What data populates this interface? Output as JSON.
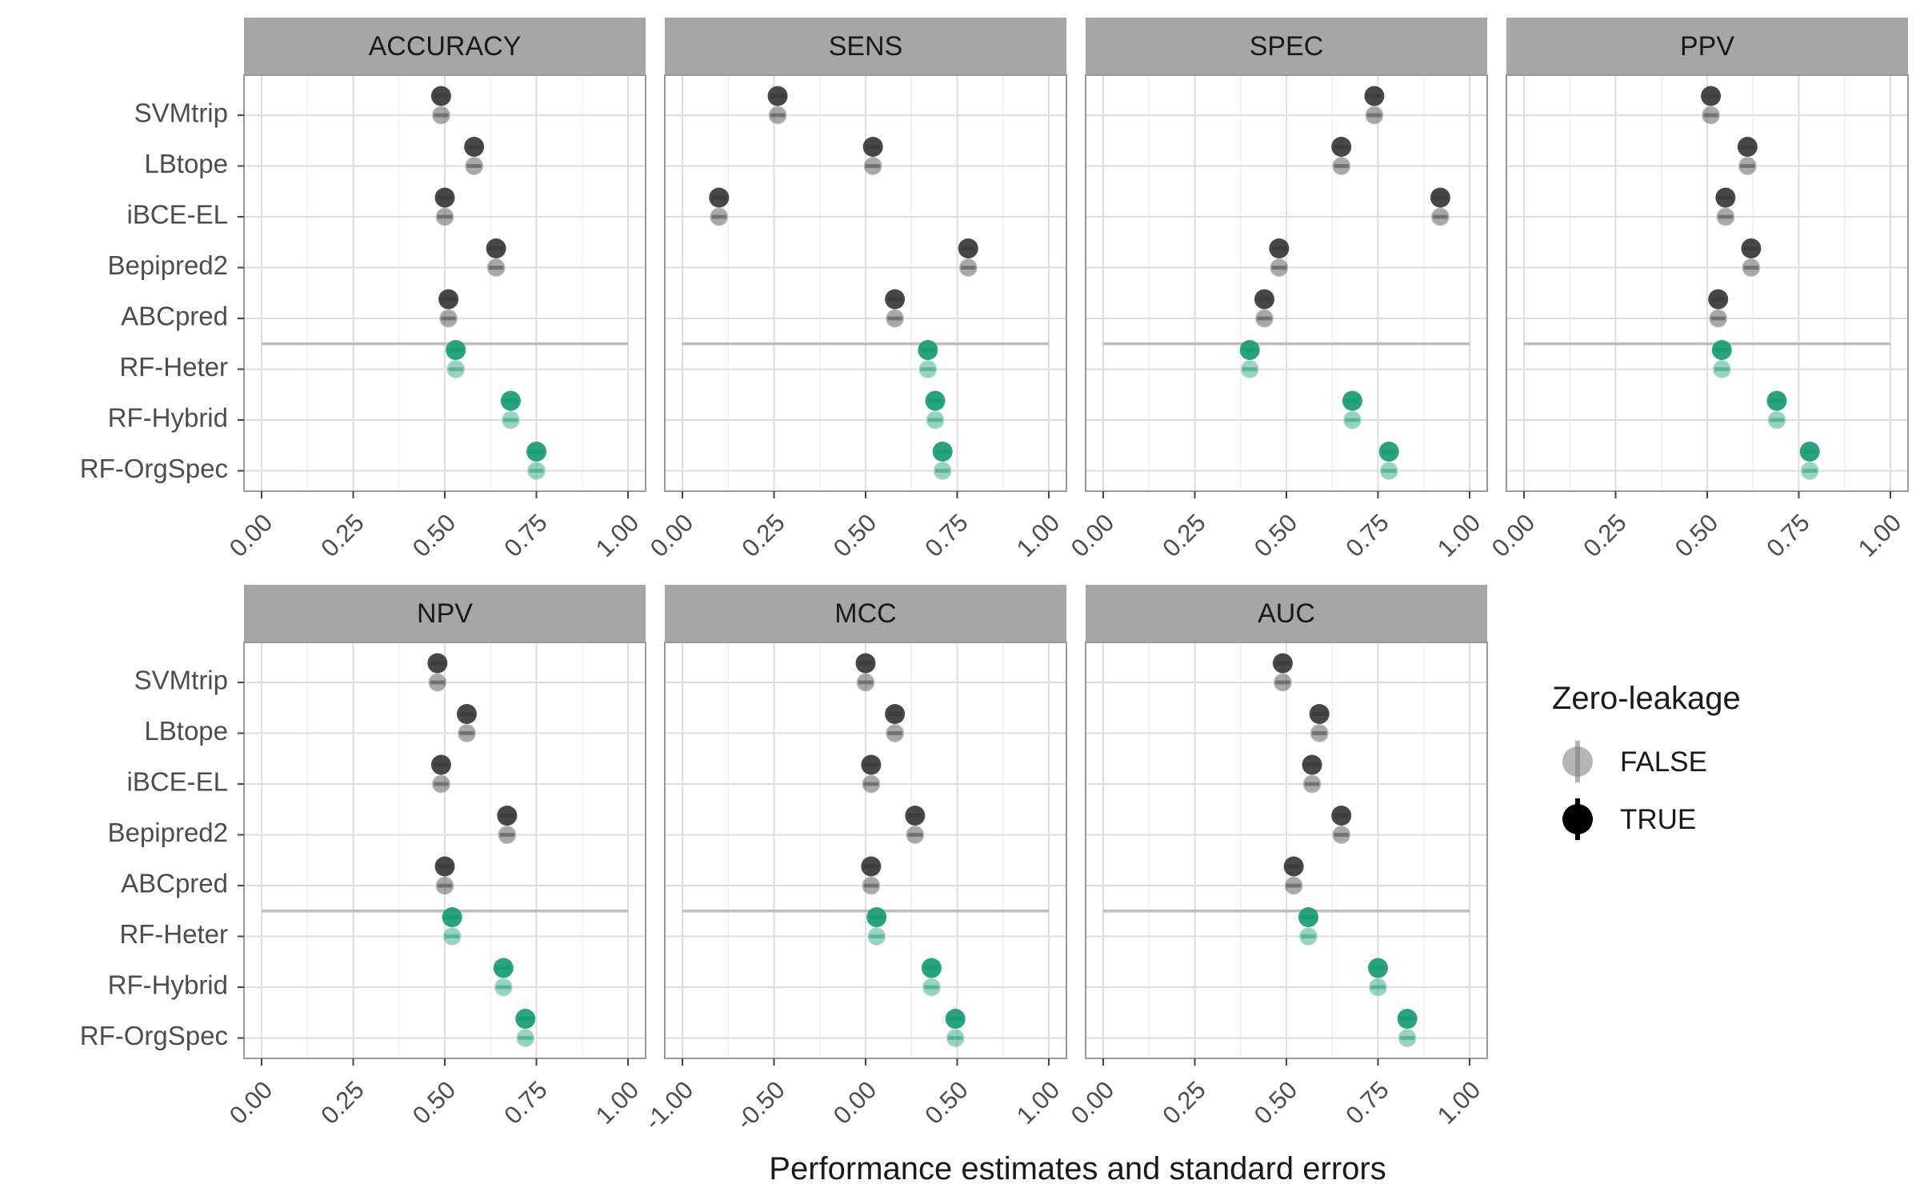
{
  "methods": [
    "SVMtrip",
    "LBtope",
    "iBCE-EL",
    "Bepipred2",
    "ABCpred",
    "RF-Heter",
    "RF-Hybrid",
    "RF-OrgSpec"
  ],
  "colors": {
    "existing_method": "#3d3d3d",
    "rf_method": "#1b9e77",
    "strip_bg": "#a6a6a6",
    "grid": "#dedede",
    "panel_border": "#9a9a9a",
    "separator": "#bdbdbd"
  },
  "xlabel": "Performance estimates and standard errors",
  "legend": {
    "title": "Zero-leakage",
    "items": [
      {
        "label": "FALSE",
        "style": "faded"
      },
      {
        "label": "TRUE",
        "style": "solid"
      }
    ]
  },
  "chart_data": [
    {
      "type": "scatter",
      "title": "ACCURACY",
      "xlim": [
        0,
        1
      ],
      "ticks": [
        "0.00",
        "0.25",
        "0.50",
        "0.75",
        "1.00"
      ],
      "tick_values": [
        0,
        0.25,
        0.5,
        0.75,
        1
      ],
      "series": [
        {
          "name": "TRUE",
          "values": [
            0.49,
            0.58,
            0.5,
            0.64,
            0.51,
            0.53,
            0.68,
            0.75
          ]
        },
        {
          "name": "FALSE",
          "values": [
            0.49,
            0.58,
            0.5,
            0.64,
            0.51,
            0.53,
            0.68,
            0.75
          ]
        }
      ]
    },
    {
      "type": "scatter",
      "title": "SENS",
      "xlim": [
        0,
        1
      ],
      "ticks": [
        "0.00",
        "0.25",
        "0.50",
        "0.75",
        "1.00"
      ],
      "tick_values": [
        0,
        0.25,
        0.5,
        0.75,
        1
      ],
      "series": [
        {
          "name": "TRUE",
          "values": [
            0.26,
            0.52,
            0.1,
            0.78,
            0.58,
            0.67,
            0.69,
            0.71
          ]
        },
        {
          "name": "FALSE",
          "values": [
            0.26,
            0.52,
            0.1,
            0.78,
            0.58,
            0.67,
            0.69,
            0.71
          ]
        }
      ]
    },
    {
      "type": "scatter",
      "title": "SPEC",
      "xlim": [
        0,
        1
      ],
      "ticks": [
        "0.00",
        "0.25",
        "0.50",
        "0.75",
        "1.00"
      ],
      "tick_values": [
        0,
        0.25,
        0.5,
        0.75,
        1
      ],
      "series": [
        {
          "name": "TRUE",
          "values": [
            0.74,
            0.65,
            0.92,
            0.48,
            0.44,
            0.4,
            0.68,
            0.78
          ]
        },
        {
          "name": "FALSE",
          "values": [
            0.74,
            0.65,
            0.92,
            0.48,
            0.44,
            0.4,
            0.68,
            0.78
          ]
        }
      ]
    },
    {
      "type": "scatter",
      "title": "PPV",
      "xlim": [
        0,
        1
      ],
      "ticks": [
        "0.00",
        "0.25",
        "0.50",
        "0.75",
        "1.00"
      ],
      "tick_values": [
        0,
        0.25,
        0.5,
        0.75,
        1
      ],
      "series": [
        {
          "name": "TRUE",
          "values": [
            0.51,
            0.61,
            0.55,
            0.62,
            0.53,
            0.54,
            0.69,
            0.78
          ]
        },
        {
          "name": "FALSE",
          "values": [
            0.51,
            0.61,
            0.55,
            0.62,
            0.53,
            0.54,
            0.69,
            0.78
          ]
        }
      ]
    },
    {
      "type": "scatter",
      "title": "NPV",
      "xlim": [
        0,
        1
      ],
      "ticks": [
        "0.00",
        "0.25",
        "0.50",
        "0.75",
        "1.00"
      ],
      "tick_values": [
        0,
        0.25,
        0.5,
        0.75,
        1
      ],
      "series": [
        {
          "name": "TRUE",
          "values": [
            0.48,
            0.56,
            0.49,
            0.67,
            0.5,
            0.52,
            0.66,
            0.72
          ]
        },
        {
          "name": "FALSE",
          "values": [
            0.48,
            0.56,
            0.49,
            0.67,
            0.5,
            0.52,
            0.66,
            0.72
          ]
        }
      ]
    },
    {
      "type": "scatter",
      "title": "MCC",
      "xlim": [
        -1,
        1
      ],
      "ticks": [
        "-1.00",
        "-0.50",
        "0.00",
        "0.50",
        "1.00"
      ],
      "tick_values": [
        -1,
        -0.5,
        0,
        0.5,
        1
      ],
      "series": [
        {
          "name": "TRUE",
          "values": [
            0.0,
            0.16,
            0.03,
            0.27,
            0.03,
            0.06,
            0.36,
            0.49
          ]
        },
        {
          "name": "FALSE",
          "values": [
            0.0,
            0.16,
            0.03,
            0.27,
            0.03,
            0.06,
            0.36,
            0.49
          ]
        }
      ]
    },
    {
      "type": "scatter",
      "title": "AUC",
      "xlim": [
        0,
        1
      ],
      "ticks": [
        "0.00",
        "0.25",
        "0.50",
        "0.75",
        "1.00"
      ],
      "tick_values": [
        0,
        0.25,
        0.5,
        0.75,
        1
      ],
      "series": [
        {
          "name": "TRUE",
          "values": [
            0.49,
            0.59,
            0.57,
            0.65,
            0.52,
            0.56,
            0.75,
            0.83
          ]
        },
        {
          "name": "FALSE",
          "values": [
            0.49,
            0.59,
            0.57,
            0.65,
            0.52,
            0.56,
            0.75,
            0.83
          ]
        }
      ]
    }
  ]
}
